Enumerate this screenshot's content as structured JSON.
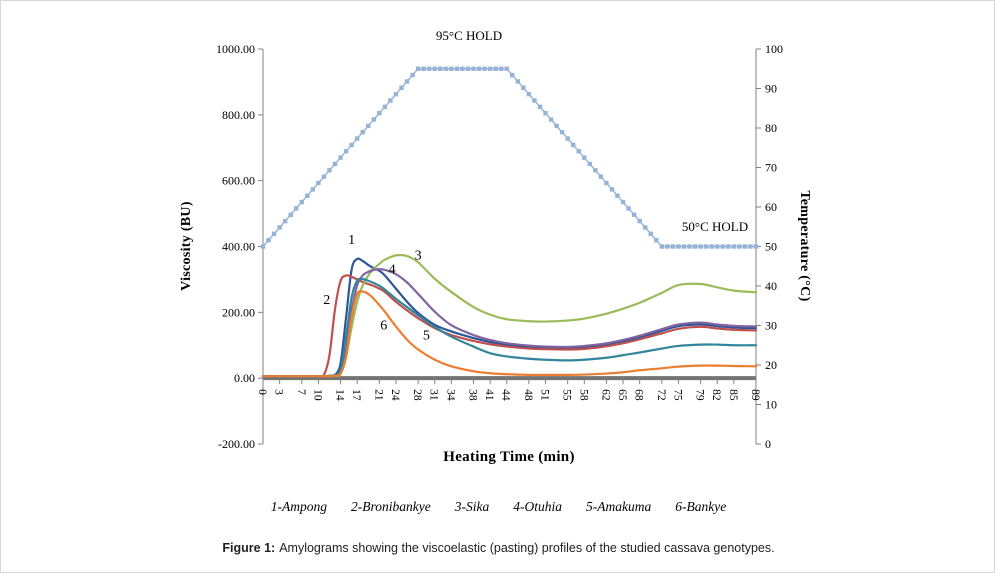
{
  "chart_data": {
    "type": "line",
    "title": "",
    "xlabel": "Heating Time (min)",
    "ylabel_left": "Viscosity (BU)",
    "ylabel_right": "Temperature (°C)",
    "xlim": [
      0,
      89
    ],
    "ylim_left": [
      -200,
      1000
    ],
    "ylim_right": [
      0,
      100
    ],
    "x_tick_labels": [
      0,
      3,
      7,
      10,
      14,
      17,
      21,
      24,
      28,
      31,
      34,
      38,
      41,
      44,
      48,
      51,
      55,
      58,
      62,
      65,
      68,
      72,
      75,
      79,
      82,
      85,
      89
    ],
    "y_ticks_left": [
      1000,
      800,
      600,
      400,
      200,
      0,
      -200
    ],
    "y_ticks_right": [
      100,
      90,
      80,
      70,
      60,
      50,
      40,
      30,
      20,
      10,
      0
    ],
    "grid": "off",
    "legend_position": "bottom",
    "annotations": {
      "hold_95": "95°C HOLD",
      "hold_50": "50°C HOLD"
    },
    "curve_labels": [
      {
        "text": "1",
        "t": 16,
        "v": 408
      },
      {
        "text": "2",
        "t": 11.5,
        "v": 225
      },
      {
        "text": "3",
        "t": 28,
        "v": 360
      },
      {
        "text": "4",
        "t": 23.3,
        "v": 318
      },
      {
        "text": "5",
        "t": 29.5,
        "v": 118
      },
      {
        "text": "6",
        "t": 21.8,
        "v": 148
      }
    ],
    "temperature_series": {
      "name": "Temperature profile",
      "axis": "right",
      "color": "#95B3D7",
      "marker": "square",
      "marker_step_min": 1,
      "profile_points": [
        [
          0,
          50
        ],
        [
          28,
          95
        ],
        [
          44,
          95
        ],
        [
          72,
          50
        ],
        [
          89,
          50
        ]
      ]
    },
    "series": [
      {
        "id": "1",
        "name": "Ampong",
        "color": "#2F5597",
        "axis": "left",
        "points": [
          [
            0,
            6
          ],
          [
            4,
            6
          ],
          [
            8,
            6
          ],
          [
            10,
            6
          ],
          [
            11,
            6
          ],
          [
            12,
            7
          ],
          [
            13,
            10
          ],
          [
            14,
            45
          ],
          [
            15,
            185
          ],
          [
            16,
            330
          ],
          [
            17,
            362
          ],
          [
            18,
            356
          ],
          [
            19,
            344
          ],
          [
            20,
            334
          ],
          [
            21,
            326
          ],
          [
            22,
            312
          ],
          [
            24,
            272
          ],
          [
            26,
            232
          ],
          [
            28,
            198
          ],
          [
            31,
            162
          ],
          [
            34,
            142
          ],
          [
            38,
            122
          ],
          [
            41,
            110
          ],
          [
            44,
            101
          ],
          [
            48,
            95
          ],
          [
            51,
            92
          ],
          [
            55,
            90
          ],
          [
            58,
            92
          ],
          [
            62,
            100
          ],
          [
            65,
            110
          ],
          [
            68,
            124
          ],
          [
            72,
            144
          ],
          [
            75,
            158
          ],
          [
            79,
            163
          ],
          [
            82,
            158
          ],
          [
            85,
            154
          ],
          [
            89,
            152
          ]
        ]
      },
      {
        "id": "2",
        "name": "Bronibankye",
        "color": "#C0504D",
        "axis": "left",
        "points": [
          [
            0,
            6
          ],
          [
            4,
            6
          ],
          [
            8,
            6
          ],
          [
            10,
            6
          ],
          [
            11,
            10
          ],
          [
            12,
            70
          ],
          [
            13,
            210
          ],
          [
            14,
            295
          ],
          [
            15,
            312
          ],
          [
            16,
            308
          ],
          [
            17,
            300
          ],
          [
            18,
            292
          ],
          [
            19,
            286
          ],
          [
            20,
            280
          ],
          [
            21,
            272
          ],
          [
            22,
            262
          ],
          [
            24,
            232
          ],
          [
            26,
            206
          ],
          [
            28,
            182
          ],
          [
            31,
            152
          ],
          [
            34,
            131
          ],
          [
            38,
            113
          ],
          [
            41,
            103
          ],
          [
            44,
            96
          ],
          [
            48,
            90
          ],
          [
            51,
            88
          ],
          [
            55,
            87
          ],
          [
            58,
            89
          ],
          [
            62,
            97
          ],
          [
            65,
            106
          ],
          [
            68,
            118
          ],
          [
            72,
            136
          ],
          [
            75,
            150
          ],
          [
            79,
            156
          ],
          [
            82,
            151
          ],
          [
            85,
            147
          ],
          [
            89,
            145
          ]
        ]
      },
      {
        "id": "3",
        "name": "Sika",
        "color": "#9BBB59",
        "axis": "left",
        "points": [
          [
            0,
            6
          ],
          [
            4,
            6
          ],
          [
            8,
            6
          ],
          [
            10,
            6
          ],
          [
            11,
            6
          ],
          [
            12,
            6
          ],
          [
            13,
            7
          ],
          [
            14,
            12
          ],
          [
            15,
            65
          ],
          [
            16,
            155
          ],
          [
            17,
            232
          ],
          [
            18,
            282
          ],
          [
            19,
            312
          ],
          [
            20,
            332
          ],
          [
            21,
            347
          ],
          [
            22,
            360
          ],
          [
            24,
            373
          ],
          [
            26,
            371
          ],
          [
            28,
            352
          ],
          [
            31,
            302
          ],
          [
            34,
            262
          ],
          [
            38,
            216
          ],
          [
            41,
            193
          ],
          [
            44,
            179
          ],
          [
            48,
            173
          ],
          [
            51,
            172
          ],
          [
            55,
            175
          ],
          [
            58,
            181
          ],
          [
            62,
            196
          ],
          [
            65,
            211
          ],
          [
            68,
            229
          ],
          [
            72,
            259
          ],
          [
            75,
            283
          ],
          [
            79,
            286
          ],
          [
            82,
            276
          ],
          [
            85,
            266
          ],
          [
            89,
            261
          ]
        ]
      },
      {
        "id": "4",
        "name": "Otuhia",
        "color": "#8064A2",
        "axis": "left",
        "points": [
          [
            0,
            6
          ],
          [
            4,
            6
          ],
          [
            8,
            6
          ],
          [
            10,
            6
          ],
          [
            11,
            6
          ],
          [
            12,
            7
          ],
          [
            13,
            9
          ],
          [
            14,
            18
          ],
          [
            15,
            95
          ],
          [
            16,
            205
          ],
          [
            17,
            282
          ],
          [
            18,
            312
          ],
          [
            19,
            323
          ],
          [
            20,
            329
          ],
          [
            21,
            331
          ],
          [
            22,
            329
          ],
          [
            24,
            316
          ],
          [
            26,
            291
          ],
          [
            28,
            256
          ],
          [
            31,
            202
          ],
          [
            34,
            161
          ],
          [
            38,
            131
          ],
          [
            41,
            116
          ],
          [
            44,
            106
          ],
          [
            48,
            99
          ],
          [
            51,
            96
          ],
          [
            55,
            95
          ],
          [
            58,
            98
          ],
          [
            62,
            106
          ],
          [
            65,
            116
          ],
          [
            68,
            129
          ],
          [
            72,
            149
          ],
          [
            75,
            163
          ],
          [
            79,
            169
          ],
          [
            82,
            163
          ],
          [
            85,
            159
          ],
          [
            89,
            157
          ]
        ]
      },
      {
        "id": "5",
        "name": "Amakuma",
        "color": "#31859C",
        "axis": "left",
        "points": [
          [
            0,
            6
          ],
          [
            4,
            6
          ],
          [
            8,
            6
          ],
          [
            10,
            6
          ],
          [
            11,
            6
          ],
          [
            12,
            7
          ],
          [
            13,
            10
          ],
          [
            14,
            25
          ],
          [
            15,
            125
          ],
          [
            16,
            245
          ],
          [
            17,
            296
          ],
          [
            18,
            301
          ],
          [
            19,
            296
          ],
          [
            20,
            289
          ],
          [
            21,
            281
          ],
          [
            22,
            269
          ],
          [
            24,
            241
          ],
          [
            26,
            216
          ],
          [
            28,
            191
          ],
          [
            31,
            156
          ],
          [
            34,
            126
          ],
          [
            38,
            96
          ],
          [
            41,
            76
          ],
          [
            44,
            66
          ],
          [
            48,
            59
          ],
          [
            51,
            56
          ],
          [
            55,
            54
          ],
          [
            58,
            56
          ],
          [
            62,
            62
          ],
          [
            65,
            70
          ],
          [
            68,
            78
          ],
          [
            72,
            90
          ],
          [
            75,
            98
          ],
          [
            79,
            102
          ],
          [
            82,
            102
          ],
          [
            85,
            100
          ],
          [
            89,
            100
          ]
        ]
      },
      {
        "id": "6",
        "name": "Bankye",
        "color": "#ED7D31",
        "axis": "left",
        "points": [
          [
            0,
            6
          ],
          [
            4,
            6
          ],
          [
            8,
            6
          ],
          [
            10,
            6
          ],
          [
            11,
            6
          ],
          [
            12,
            6
          ],
          [
            13,
            8
          ],
          [
            14,
            14
          ],
          [
            15,
            65
          ],
          [
            16,
            185
          ],
          [
            17,
            256
          ],
          [
            18,
            263
          ],
          [
            19,
            256
          ],
          [
            20,
            241
          ],
          [
            21,
            222
          ],
          [
            22,
            202
          ],
          [
            24,
            157
          ],
          [
            26,
            117
          ],
          [
            28,
            87
          ],
          [
            31,
            56
          ],
          [
            34,
            36
          ],
          [
            38,
            21
          ],
          [
            41,
            15
          ],
          [
            44,
            12
          ],
          [
            48,
            10
          ],
          [
            51,
            10
          ],
          [
            55,
            10
          ],
          [
            58,
            11
          ],
          [
            62,
            14
          ],
          [
            65,
            18
          ],
          [
            68,
            24
          ],
          [
            72,
            30
          ],
          [
            75,
            35
          ],
          [
            79,
            38
          ],
          [
            82,
            38
          ],
          [
            85,
            37
          ],
          [
            89,
            36
          ]
        ]
      }
    ],
    "legend": [
      "1-Ampong",
      "2-Bronibankye",
      "3-Sika",
      "4-Otuhia",
      "5-Amakuma",
      "6-Bankye"
    ]
  },
  "caption": {
    "label": "Figure 1:",
    "text": "Amylograms showing the viscoelastic (pasting) profiles of the studied cassava genotypes."
  }
}
